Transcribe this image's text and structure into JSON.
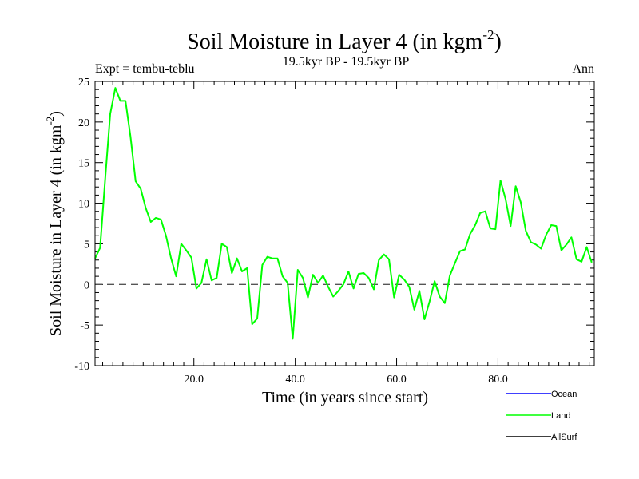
{
  "chart_data": {
    "type": "line",
    "title_main": "Soil Moisture in Layer 4 (in kgm",
    "title_sup": "-2",
    "title_close": ")",
    "subtitle": "19.5kyr BP - 19.5kyr BP",
    "left_label": "Expt = tembu-teblu",
    "right_label": "Ann",
    "xlabel": "Time (in years since start)",
    "ylabel_main": "Soil Moisture in Layer 4 (in kgm",
    "ylabel_sup": "-2",
    "ylabel_close": ")",
    "xlim": [
      0.5,
      99
    ],
    "ylim": [
      -10,
      25
    ],
    "xticks": [
      20,
      40,
      60,
      80
    ],
    "xtick_labels": [
      "20.0",
      "40.0",
      "60.0",
      "80.0"
    ],
    "yticks": [
      -10,
      -5,
      0,
      5,
      10,
      15,
      20,
      25
    ],
    "ytick_labels": [
      "-10",
      "-5",
      "0",
      "5",
      "10",
      "15",
      "20",
      "25"
    ],
    "zero_line": true,
    "legend": [
      {
        "name": "Ocean",
        "color": "#0000ff"
      },
      {
        "name": "Land",
        "color": "#00ff00"
      },
      {
        "name": "AllSurf",
        "color": "#000000"
      }
    ],
    "series": [
      {
        "name": "Land",
        "color": "#00ff00",
        "x": [
          0.5,
          1.5,
          2.5,
          3.5,
          4.5,
          5.5,
          6.5,
          7.5,
          8.5,
          9.5,
          10.5,
          11.5,
          12.5,
          13.5,
          14.5,
          15.5,
          16.5,
          17.5,
          18.5,
          19.5,
          20.5,
          21.5,
          22.5,
          23.5,
          24.5,
          25.5,
          26.5,
          27.5,
          28.5,
          29.5,
          30.5,
          31.5,
          32.5,
          33.5,
          34.5,
          35.5,
          36.5,
          37.5,
          38.5,
          39.5,
          40.5,
          41.5,
          42.5,
          43.5,
          44.5,
          45.5,
          46.5,
          47.5,
          48.5,
          49.5,
          50.5,
          51.5,
          52.5,
          53.5,
          54.5,
          55.5,
          56.5,
          57.5,
          58.5,
          59.5,
          60.5,
          61.5,
          62.5,
          63.5,
          64.5,
          65.5,
          66.5,
          67.5,
          68.5,
          69.5,
          70.5,
          71.5,
          72.5,
          73.5,
          74.5,
          75.5,
          76.5,
          77.5,
          78.5,
          79.5,
          80.5,
          81.5,
          82.5,
          83.5,
          84.5,
          85.5,
          86.5,
          87.5,
          88.5,
          89.5,
          90.5,
          91.5,
          92.5,
          93.5,
          94.5,
          95.5,
          96.5,
          97.5,
          98.5
        ],
        "y": [
          3.2,
          4.5,
          13.0,
          21.0,
          24.2,
          22.6,
          22.6,
          18.2,
          12.7,
          11.8,
          9.4,
          7.7,
          8.2,
          8.0,
          6.0,
          3.2,
          1.0,
          5.0,
          4.2,
          3.3,
          -0.5,
          0.2,
          3.1,
          0.5,
          0.8,
          5.0,
          4.6,
          1.4,
          3.2,
          1.6,
          2.0,
          -4.9,
          -4.2,
          2.4,
          3.4,
          3.2,
          3.2,
          1.0,
          0.2,
          -6.7,
          1.8,
          0.8,
          -1.6,
          1.2,
          0.2,
          1.1,
          -0.3,
          -1.5,
          -0.8,
          0.0,
          1.6,
          -0.5,
          1.3,
          1.4,
          0.8,
          -0.6,
          3.0,
          3.7,
          3.1,
          -1.6,
          1.2,
          0.6,
          -0.3,
          -3.1,
          -0.8,
          -4.3,
          -2.1,
          0.4,
          -1.5,
          -2.3,
          1.1,
          2.6,
          4.1,
          4.3,
          6.2,
          7.3,
          8.8,
          9.0,
          6.9,
          6.8,
          12.8,
          10.5,
          7.2,
          12.1,
          10.1,
          6.6,
          5.2,
          4.9,
          4.4,
          6.1,
          7.3,
          7.2,
          4.2,
          4.9,
          5.8,
          3.1,
          2.8,
          4.6,
          2.7
        ]
      }
    ]
  }
}
